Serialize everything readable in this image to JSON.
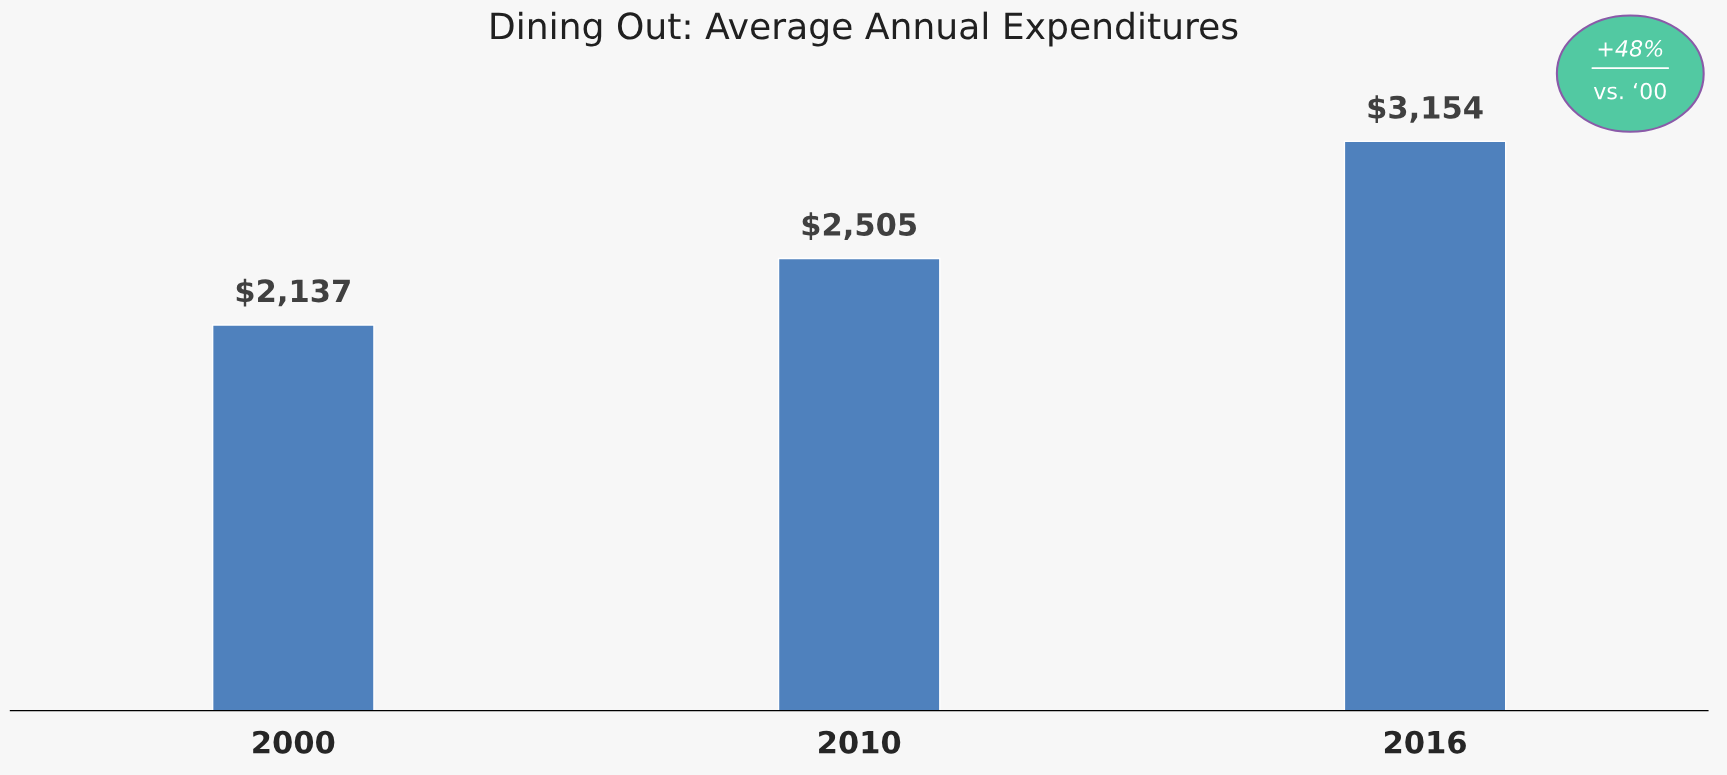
{
  "chart_data": {
    "type": "bar",
    "title": "Dining Out: Average Annual Expenditures",
    "categories": [
      "2000",
      "2010",
      "2016"
    ],
    "series": [
      {
        "color": "#4f81bd",
        "values": [
          2137,
          2505,
          3154
        ],
        "value_labels": [
          "$2,137",
          "$2,505",
          "$3,154"
        ]
      }
    ],
    "annotations": [
      "+48%",
      "vs. ‘00"
    ]
  }
}
